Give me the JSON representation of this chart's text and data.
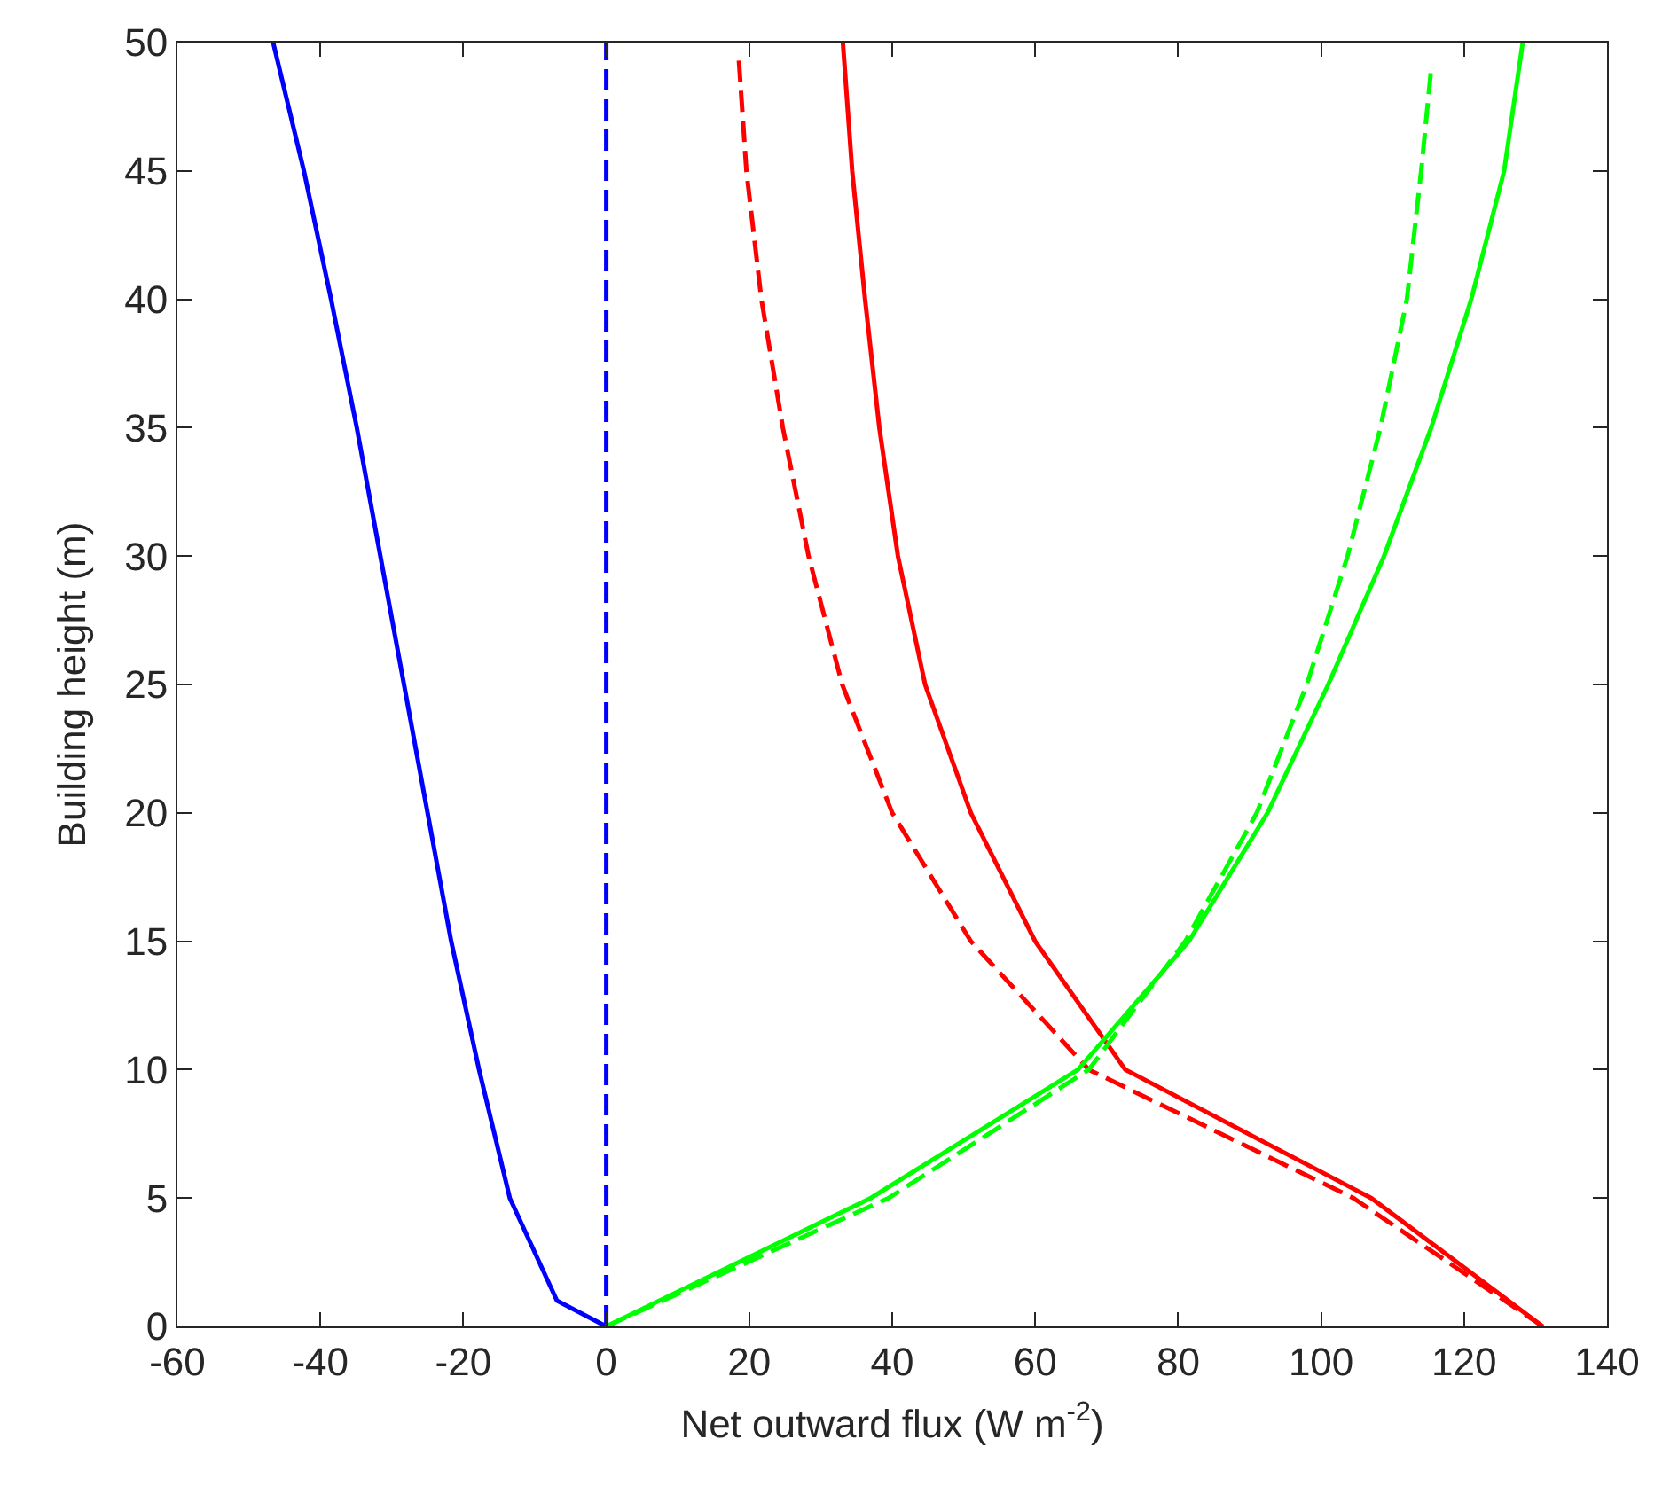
{
  "chart_data": {
    "type": "line",
    "xlabel": "Net outward flux (W m$^{-2}$)",
    "ylabel": "Building height (m)",
    "xlim": [
      -60,
      140
    ],
    "xticks": [
      -60,
      -40,
      -20,
      0,
      20,
      40,
      60,
      80,
      100,
      120,
      140
    ],
    "ylim": [
      0,
      50
    ],
    "yticks": [
      0,
      5,
      10,
      15,
      20,
      25,
      30,
      35,
      40,
      45,
      50
    ],
    "marker": "none",
    "series": [
      {
        "color": "#0000ff",
        "line_style": "solid",
        "x": [
          0,
          -6.9,
          -13.5,
          -17.8,
          -21.7,
          -25,
          -28.3,
          -31.6,
          -34.9,
          -38.5,
          -42.3,
          -46.6
        ],
        "values": [
          0,
          1,
          5,
          10,
          15,
          20,
          25,
          30,
          35,
          40,
          45,
          50
        ]
      },
      {
        "color": "#0000ff",
        "line_style": "dashed",
        "x": [
          0,
          0
        ],
        "values": [
          0,
          50
        ]
      },
      {
        "color": "#ff0000",
        "line_style": "solid",
        "x": [
          131,
          107,
          72.6,
          60,
          51,
          44.6,
          40.8,
          38.2,
          36.2,
          34.4,
          33.1
        ],
        "values": [
          0,
          5,
          10,
          15,
          20,
          25,
          30,
          35,
          40,
          45,
          50
        ]
      },
      {
        "color": "#ff0000",
        "line_style": "dashed",
        "x": [
          131,
          104.5,
          67.5,
          51,
          40,
          33,
          28.3,
          24.7,
          21.7,
          19.6,
          18.5
        ],
        "values": [
          0,
          5,
          10,
          15,
          20,
          25,
          30,
          35,
          40,
          45,
          49.5
        ]
      },
      {
        "color": "#00ff00",
        "line_style": "solid",
        "x": [
          0,
          37,
          66,
          81.5,
          92.5,
          101,
          108.8,
          115.4,
          121,
          125.6,
          128.2
        ],
        "values": [
          0,
          5,
          10,
          15,
          20,
          25,
          30,
          35,
          40,
          45,
          50
        ]
      },
      {
        "color": "#00ff00",
        "line_style": "dashed",
        "x": [
          0,
          39.5,
          67.5,
          81,
          91,
          98,
          103.7,
          108.3,
          112,
          114,
          115.4
        ],
        "values": [
          0,
          5,
          10,
          15,
          20,
          25,
          30,
          35,
          40,
          45,
          49
        ]
      }
    ]
  }
}
